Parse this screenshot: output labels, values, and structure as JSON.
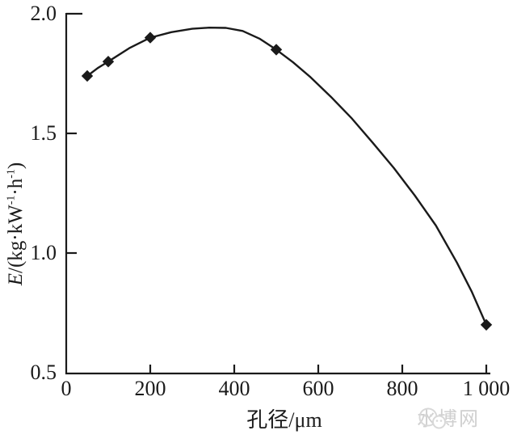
{
  "page": {
    "background": "#ffffff",
    "ink_color": "#1a1a1a"
  },
  "chart_data": {
    "type": "line",
    "title": "",
    "xlabel": "孔径/μm",
    "ylabel": "E/(kg·kW-1·h-1)",
    "y_label_parts": {
      "var": "E",
      "pre": "/(kg·kW",
      "sup1": "-1",
      "mid": "·h",
      "sup2": "-1",
      "close": ")"
    },
    "x": [
      50,
      100,
      200,
      500,
      1000
    ],
    "y": [
      1.74,
      1.8,
      1.9,
      1.85,
      0.7
    ],
    "marker": "diamond",
    "marker_color": "#1a1a1a",
    "line_color": "#1a1a1a",
    "xlim": [
      0,
      1000
    ],
    "ylim": [
      0.5,
      2.0
    ],
    "x_ticks": [
      0,
      200,
      400,
      600,
      800,
      1000
    ],
    "x_tick_labels": [
      "0",
      "200",
      "400",
      "600",
      "800",
      "1 000"
    ],
    "y_ticks": [
      2.0,
      1.5,
      1.0,
      0.5
    ],
    "y_tick_labels": [
      "2.0",
      "1.5",
      "1.0",
      "0.5"
    ],
    "grid": false,
    "legend": "none",
    "curve_samples": [
      [
        50,
        1.74
      ],
      [
        75,
        1.773
      ],
      [
        100,
        1.8
      ],
      [
        150,
        1.856
      ],
      [
        200,
        1.9
      ],
      [
        250,
        1.923
      ],
      [
        300,
        1.937
      ],
      [
        340,
        1.942
      ],
      [
        380,
        1.941
      ],
      [
        420,
        1.928
      ],
      [
        460,
        1.896
      ],
      [
        500,
        1.85
      ],
      [
        540,
        1.797
      ],
      [
        580,
        1.737
      ],
      [
        630,
        1.653
      ],
      [
        680,
        1.562
      ],
      [
        730,
        1.46
      ],
      [
        780,
        1.355
      ],
      [
        830,
        1.24
      ],
      [
        880,
        1.115
      ],
      [
        930,
        0.96
      ],
      [
        965,
        0.84
      ],
      [
        1000,
        0.7
      ]
    ]
  },
  "watermark": {
    "text": "水博网",
    "logo": "wechat-smiley",
    "color": "#d0d0d0"
  }
}
